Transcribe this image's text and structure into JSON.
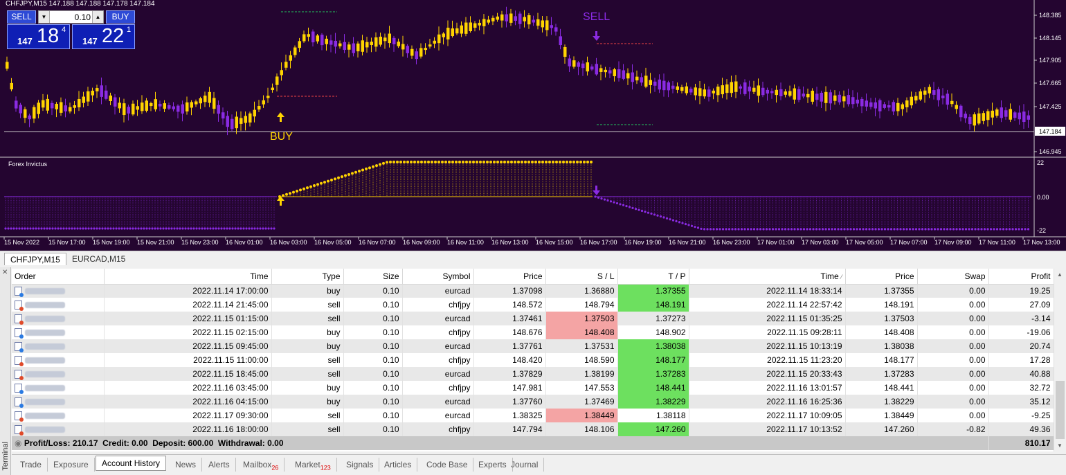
{
  "chart": {
    "title": "CHFJPY,M15  147.188 147.188 147.178 147.184",
    "indicator_name": "Forex Invictus",
    "buy_label": "BUY",
    "sell_label": "SELL",
    "price_axis": [
      "148.385",
      "148.145",
      "147.905",
      "147.665",
      "147.425",
      "147.184",
      "146.945"
    ],
    "current_price": "147.184",
    "indicator_axis": [
      "22",
      "0.00",
      "-22"
    ],
    "time_axis": [
      "15 Nov 2022",
      "15 Nov 17:00",
      "15 Nov 19:00",
      "15 Nov 21:00",
      "15 Nov 23:00",
      "16 Nov 01:00",
      "16 Nov 03:00",
      "16 Nov 05:00",
      "16 Nov 07:00",
      "16 Nov 09:00",
      "16 Nov 11:00",
      "16 Nov 13:00",
      "16 Nov 15:00",
      "16 Nov 17:00",
      "16 Nov 19:00",
      "16 Nov 21:00",
      "16 Nov 23:00",
      "17 Nov 01:00",
      "17 Nov 03:00",
      "17 Nov 05:00",
      "17 Nov 07:00",
      "17 Nov 09:00",
      "17 Nov 11:00",
      "17 Nov 13:00"
    ],
    "colors": {
      "background": "#240530",
      "bull": "#ffd400",
      "bear": "#8a2be2",
      "grid_line": "#c8c8c8"
    }
  },
  "oneclick": {
    "sell_label": "SELL",
    "buy_label": "BUY",
    "volume": "0.10",
    "sell_price_small": "147",
    "sell_price_big": "18",
    "sell_price_sup": "4",
    "buy_price_small": "147",
    "buy_price_big": "22",
    "buy_price_sup": "1"
  },
  "chart_tabs": [
    "CHFJPY,M15",
    "EURCAD,M15"
  ],
  "terminal": {
    "side_label": "Terminal",
    "columns": [
      "Order",
      "Time",
      "Type",
      "Size",
      "Symbol",
      "Price",
      "S / L",
      "T / P",
      "Time",
      "Price",
      "Swap",
      "Profit"
    ],
    "rows": [
      {
        "type": "buy",
        "time": "2022.11.14 17:00:00",
        "size": "0.10",
        "symbol": "eurcad",
        "price": "1.37098",
        "sl": "1.36880",
        "tp": "1.37355",
        "hit": "tp",
        "close_time": "2022.11.14 18:33:14",
        "close_price": "1.37355",
        "swap": "0.00",
        "profit": "19.25"
      },
      {
        "type": "sell",
        "time": "2022.11.14 21:45:00",
        "size": "0.10",
        "symbol": "chfjpy",
        "price": "148.572",
        "sl": "148.794",
        "tp": "148.191",
        "hit": "tp",
        "close_time": "2022.11.14 22:57:42",
        "close_price": "148.191",
        "swap": "0.00",
        "profit": "27.09"
      },
      {
        "type": "sell",
        "time": "2022.11.15 01:15:00",
        "size": "0.10",
        "symbol": "eurcad",
        "price": "1.37461",
        "sl": "1.37503",
        "tp": "1.37273",
        "hit": "sl",
        "close_time": "2022.11.15 01:35:25",
        "close_price": "1.37503",
        "swap": "0.00",
        "profit": "-3.14"
      },
      {
        "type": "buy",
        "time": "2022.11.15 02:15:00",
        "size": "0.10",
        "symbol": "chfjpy",
        "price": "148.676",
        "sl": "148.408",
        "tp": "148.902",
        "hit": "sl",
        "close_time": "2022.11.15 09:28:11",
        "close_price": "148.408",
        "swap": "0.00",
        "profit": "-19.06"
      },
      {
        "type": "buy",
        "time": "2022.11.15 09:45:00",
        "size": "0.10",
        "symbol": "eurcad",
        "price": "1.37761",
        "sl": "1.37531",
        "tp": "1.38038",
        "hit": "tp",
        "close_time": "2022.11.15 10:13:19",
        "close_price": "1.38038",
        "swap": "0.00",
        "profit": "20.74"
      },
      {
        "type": "sell",
        "time": "2022.11.15 11:00:00",
        "size": "0.10",
        "symbol": "chfjpy",
        "price": "148.420",
        "sl": "148.590",
        "tp": "148.177",
        "hit": "tp",
        "close_time": "2022.11.15 11:23:20",
        "close_price": "148.177",
        "swap": "0.00",
        "profit": "17.28"
      },
      {
        "type": "sell",
        "time": "2022.11.15 18:45:00",
        "size": "0.10",
        "symbol": "eurcad",
        "price": "1.37829",
        "sl": "1.38199",
        "tp": "1.37283",
        "hit": "tp",
        "close_time": "2022.11.15 20:33:43",
        "close_price": "1.37283",
        "swap": "0.00",
        "profit": "40.88"
      },
      {
        "type": "buy",
        "time": "2022.11.16 03:45:00",
        "size": "0.10",
        "symbol": "chfjpy",
        "price": "147.981",
        "sl": "147.553",
        "tp": "148.441",
        "hit": "tp",
        "close_time": "2022.11.16 13:01:57",
        "close_price": "148.441",
        "swap": "0.00",
        "profit": "32.72"
      },
      {
        "type": "buy",
        "time": "2022.11.16 04:15:00",
        "size": "0.10",
        "symbol": "eurcad",
        "price": "1.37760",
        "sl": "1.37469",
        "tp": "1.38229",
        "hit": "tp",
        "close_time": "2022.11.16 16:25:36",
        "close_price": "1.38229",
        "swap": "0.00",
        "profit": "35.12"
      },
      {
        "type": "sell",
        "time": "2022.11.17 09:30:00",
        "size": "0.10",
        "symbol": "eurcad",
        "price": "1.38325",
        "sl": "1.38449",
        "tp": "1.38118",
        "hit": "sl",
        "close_time": "2022.11.17 10:09:05",
        "close_price": "1.38449",
        "swap": "0.00",
        "profit": "-9.25"
      },
      {
        "type": "sell",
        "time": "2022.11.16 18:00:00",
        "size": "0.10",
        "symbol": "chfjpy",
        "price": "147.794",
        "sl": "148.106",
        "tp": "147.260",
        "hit": "tp",
        "close_time": "2022.11.17 10:13:52",
        "close_price": "147.260",
        "swap": "-0.82",
        "profit": "49.36"
      }
    ],
    "summary_text": "Profit/Loss: 210.17  Credit: 0.00  Deposit: 600.00  Withdrawal: 0.00",
    "summary_total": "810.17"
  },
  "bottom_tabs": [
    {
      "label": "Trade",
      "badge": ""
    },
    {
      "label": "Exposure",
      "badge": ""
    },
    {
      "label": "Account History",
      "badge": ""
    },
    {
      "label": "News",
      "badge": ""
    },
    {
      "label": "Alerts",
      "badge": ""
    },
    {
      "label": "Mailbox",
      "badge": "26"
    },
    {
      "label": "Market",
      "badge": "123"
    },
    {
      "label": "Signals",
      "badge": ""
    },
    {
      "label": "Articles",
      "badge": ""
    },
    {
      "label": "Code Base",
      "badge": ""
    },
    {
      "label": "Experts",
      "badge": ""
    },
    {
      "label": "Journal",
      "badge": ""
    }
  ],
  "active_bottom_tab": "Account History"
}
